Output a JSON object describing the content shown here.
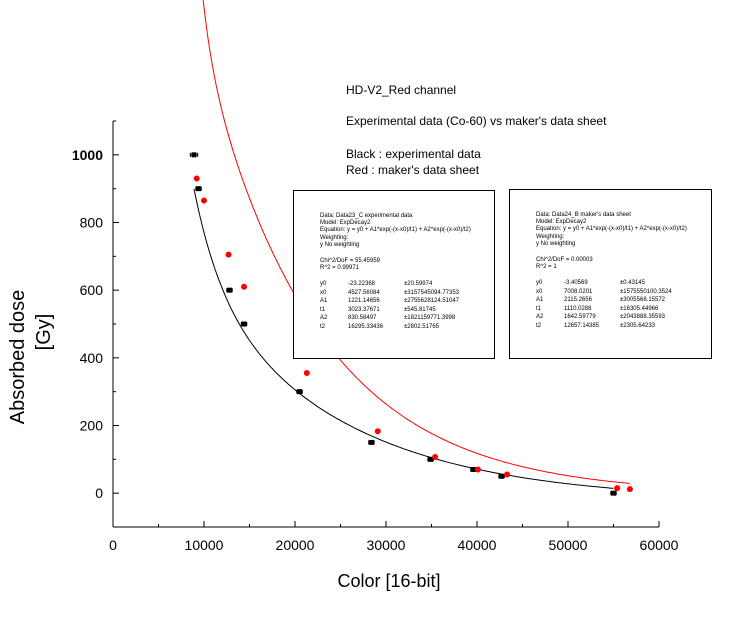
{
  "annotations": {
    "title": "HD-V2_Red channel",
    "subtitle": "Experimental data (Co-60) vs maker's data sheet",
    "legend_black": "Black : experimental data",
    "legend_red": "Red : maker's data sheet"
  },
  "fit_boxes": [
    {
      "data": "Data: Data23_C  experimental data",
      "model": "Model: ExpDecay2",
      "equation": "Equation: y = y0 + A1*exp(-(x-x0)/t1) + A2*exp(-(x-x0)/t2)",
      "weighting_label": "Weighting:",
      "weighting_row": "y        No weighting",
      "chi2": "Chi^2/DoF       = 55.45959",
      "r2": "R^2       =  0.99971",
      "params": [
        {
          "name": "y0",
          "value": "-23.22368",
          "error": "±20.59974"
        },
        {
          "name": "x0",
          "value": "4527.56084",
          "error": "±3157545094.77353"
        },
        {
          "name": "A1",
          "value": "1221.14656",
          "error": "±2755628124.51047"
        },
        {
          "name": "t1",
          "value": "3023.37671",
          "error": "±545.81745"
        },
        {
          "name": "A2",
          "value": "830.58497",
          "error": "±1821159771.3998"
        },
        {
          "name": "t2",
          "value": "16295.33436",
          "error": "±2802.51765"
        }
      ]
    },
    {
      "data": "Data: Data24_B  maker's data sheet",
      "model": "Model: ExpDecay2",
      "equation": "Equation: y = y0 + A1*exp(-(x-x0)/t1) + A2*exp(-(x-x0)/t2)",
      "weighting_label": "Weighting:",
      "weighting_row": "y        No weighting",
      "chi2": "Chi^2/DoF       = 0.00003",
      "r2": "R^2       =  1",
      "params": [
        {
          "name": "y0",
          "value": "-3.40569",
          "error": "±0.43145"
        },
        {
          "name": "x0",
          "value": "7008.0201",
          "error": "±1575550100.3524"
        },
        {
          "name": "A1",
          "value": "2115.2656",
          "error": "±3005568.15572"
        },
        {
          "name": "t1",
          "value": "1110.0288",
          "error": "±16305.44966"
        },
        {
          "name": "A2",
          "value": "1642.59779",
          "error": "±2043888.35593"
        },
        {
          "name": "t2",
          "value": "12657.14385",
          "error": "±2305.64233"
        }
      ]
    }
  ],
  "chart_data": {
    "type": "scatter",
    "xlabel": "Color [16-bit]",
    "ylabel_line1": "Absorbed dose",
    "ylabel_line2": "[Gy]",
    "xlim": [
      0,
      60000
    ],
    "ylim": [
      -100,
      1100
    ],
    "x_ticks": [
      0,
      10000,
      20000,
      30000,
      40000,
      50000,
      60000
    ],
    "y_ticks": [
      0,
      200,
      400,
      600,
      800,
      1000
    ],
    "grid": false,
    "colors": {
      "experimental": "#000000",
      "datasheet": "#ff0000"
    },
    "series": [
      {
        "key": "experimental",
        "x": [
          8900,
          9400,
          12800,
          14400,
          20500,
          28400,
          34900,
          39600,
          42700,
          55000
        ],
        "y": [
          1000,
          900,
          600,
          500,
          300,
          150,
          100,
          70,
          50,
          0
        ],
        "x_err": [
          400,
          300,
          300,
          300,
          300,
          300,
          300,
          300,
          300,
          300
        ],
        "fit": {
          "y0": -23.22368,
          "x0": 4527.56084,
          "A1": 1221.14656,
          "t1": 3023.37671,
          "A2": 830.58497,
          "t2": 16295.33436
        }
      },
      {
        "key": "datasheet",
        "x": [
          9200,
          10000,
          12700,
          14400,
          21300,
          29100,
          35400,
          40100,
          43300,
          55400,
          56800
        ],
        "y": [
          930,
          865,
          705,
          610,
          355,
          183,
          107,
          70,
          55,
          15,
          12
        ],
        "fit": {
          "y0": -3.40569,
          "x0": 7008.0201,
          "A1": 2115.2656,
          "t1": 1110.0288,
          "A2": 1642.59779,
          "t2": 12657.14385
        }
      }
    ]
  }
}
